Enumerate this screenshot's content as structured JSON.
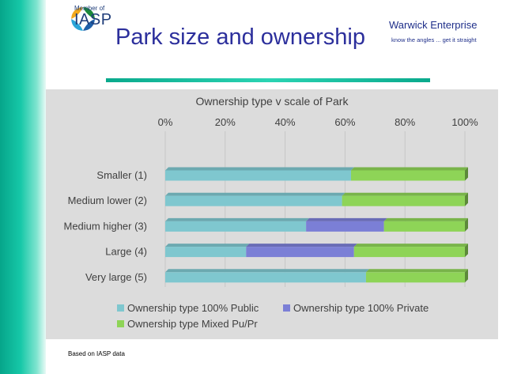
{
  "slide": {
    "title": "Park size and ownership",
    "logo_member": "Member of",
    "logo_name": "IASP",
    "brand_name": "Warwick Enterprise",
    "brand_tagline": "know the angles ... get it straight",
    "footnote": "Based on IASP data"
  },
  "colors": {
    "public": "#7fc7cf",
    "private": "#7b7fd6",
    "mixed": "#8ed457",
    "title": "#2c2f9c",
    "accent": "#16c8a8"
  },
  "chart_data": {
    "type": "bar",
    "orientation": "horizontal",
    "stacked": "percent",
    "title": "Ownership type v scale of Park",
    "categories": [
      "Smaller (1)",
      "Medium lower (2)",
      "Medium higher (3)",
      "Large (4)",
      "Very large (5)"
    ],
    "series": [
      {
        "name": "Ownership type 100% Public",
        "values": [
          62,
          59,
          47,
          27,
          67
        ],
        "color": "#7fc7cf"
      },
      {
        "name": "Ownership type 100% Private",
        "values": [
          0,
          0,
          26,
          36,
          0
        ],
        "color": "#7b7fd6"
      },
      {
        "name": "Ownership type Mixed Pu/Pr",
        "values": [
          38,
          41,
          27,
          37,
          33
        ],
        "color": "#8ed457"
      }
    ],
    "xticks": [
      "0%",
      "20%",
      "40%",
      "60%",
      "80%",
      "100%"
    ],
    "xlim": [
      0,
      100
    ],
    "x_axis_position": "top",
    "grid": true,
    "legend": "bottom"
  }
}
